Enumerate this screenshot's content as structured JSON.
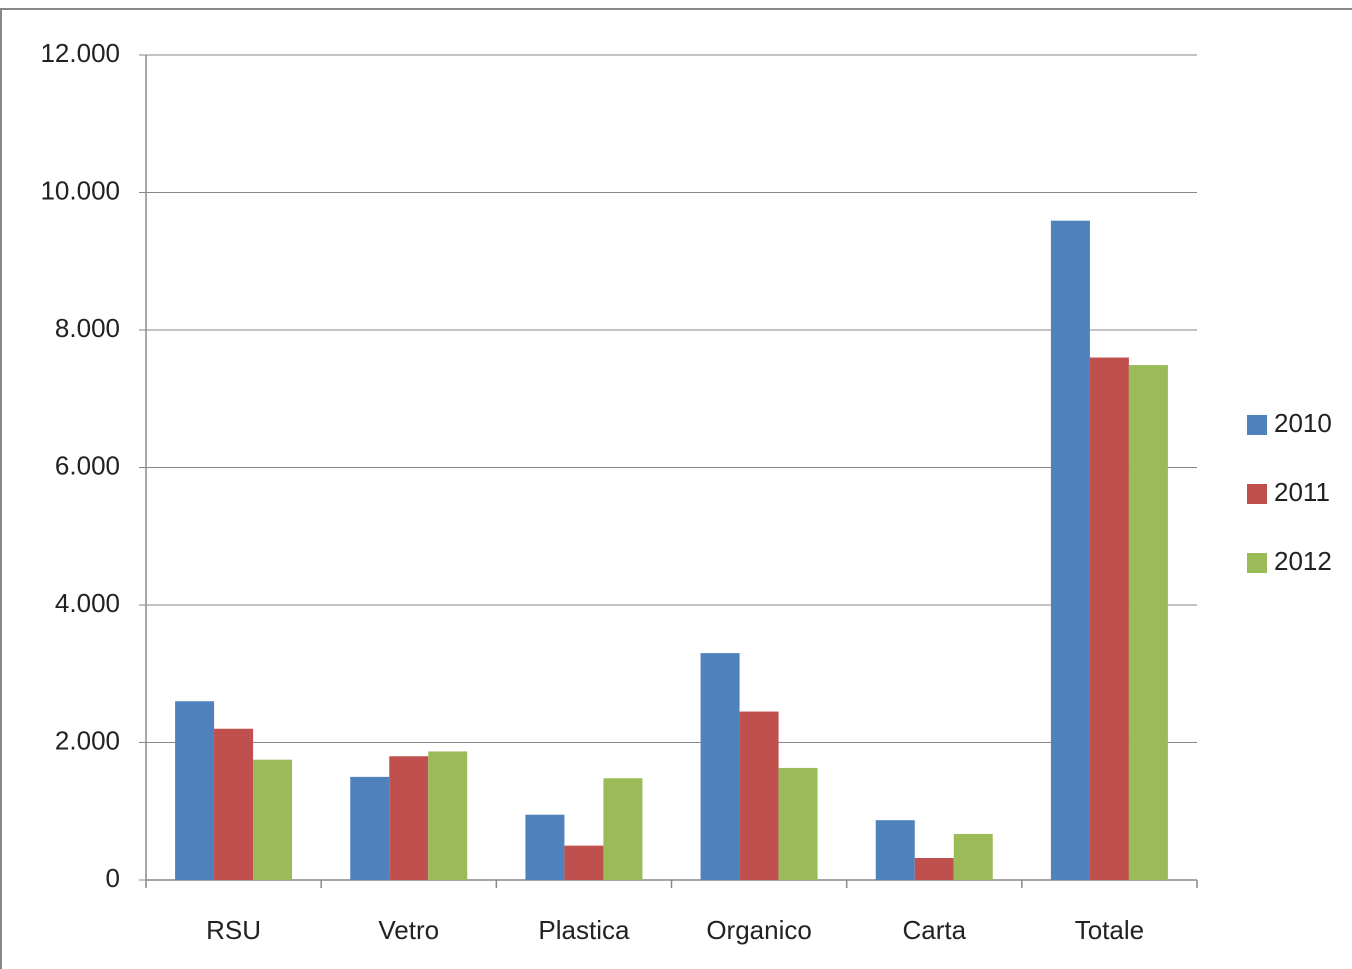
{
  "chart_data": {
    "type": "bar",
    "categories": [
      "RSU",
      "Vetro",
      "Plastica",
      "Organico",
      "Carta",
      "Totale"
    ],
    "series": [
      {
        "name": "2010",
        "color": "#4f81bd",
        "values": [
          2600,
          1500,
          950,
          3300,
          870,
          9590
        ]
      },
      {
        "name": "2011",
        "color": "#c0504d",
        "values": [
          2200,
          1800,
          500,
          2450,
          320,
          7600
        ]
      },
      {
        "name": "2012",
        "color": "#9bbb59",
        "values": [
          1750,
          1870,
          1480,
          1630,
          670,
          7490
        ]
      }
    ],
    "ylim": [
      0,
      12000
    ],
    "yticks": [
      0,
      {
        "value": 2000,
        "label": "2.000"
      },
      {
        "value": 4000,
        "label": "4.000"
      },
      {
        "value": 6000,
        "label": "6.000"
      },
      {
        "value": 8000,
        "label": "8.000"
      },
      {
        "value": 10000,
        "label": "10.000"
      },
      {
        "value": 12000,
        "label": "12.000"
      }
    ],
    "grid": true,
    "legend": "right"
  }
}
